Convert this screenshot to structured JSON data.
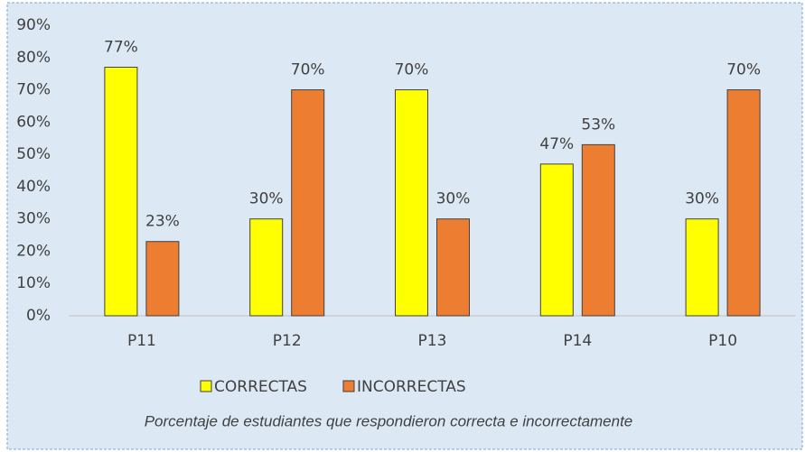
{
  "chart_data": {
    "type": "bar",
    "caption": "Porcentaje de estudiantes que respondieron correcta e incorrectamente",
    "categories": [
      "P11",
      "P12",
      "P13",
      "P14",
      "P10"
    ],
    "series": [
      {
        "name": "CORRECTAS",
        "color": "#ffff00",
        "values": [
          77,
          30,
          70,
          47,
          30
        ],
        "value_labels": [
          "77%",
          "30%",
          "70%",
          "47%",
          "30%"
        ]
      },
      {
        "name": "INCORRECTAS",
        "color": "#ed7d31",
        "values": [
          23,
          70,
          30,
          53,
          70
        ],
        "value_labels": [
          "23%",
          "70%",
          "30%",
          "53%",
          "70%"
        ]
      }
    ],
    "ylim": [
      0,
      90
    ],
    "yticks": [
      {
        "value": 0,
        "label": "0%"
      },
      {
        "value": 10,
        "label": "10%"
      },
      {
        "value": 20,
        "label": "20%"
      },
      {
        "value": 30,
        "label": "30%"
      },
      {
        "value": 40,
        "label": "40%"
      },
      {
        "value": 50,
        "label": "50%"
      },
      {
        "value": 60,
        "label": "60%"
      },
      {
        "value": 70,
        "label": "70%"
      },
      {
        "value": 80,
        "label": "80%"
      },
      {
        "value": 90,
        "label": "90%"
      }
    ],
    "grid": false,
    "legend": "bottom"
  }
}
